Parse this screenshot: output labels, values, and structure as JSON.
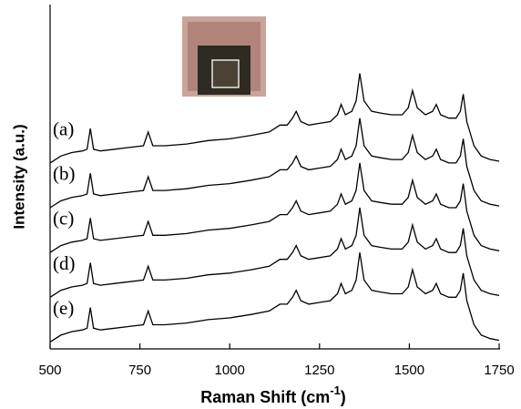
{
  "chart_data": {
    "type": "line",
    "xlabel": [
      "Raman Shift (cm",
      "-1",
      ")"
    ],
    "ylabel": "Intensity (a.u.)",
    "x": [
      500,
      530,
      560,
      590,
      603,
      612,
      621,
      640,
      680,
      720,
      760,
      773,
      786,
      820,
      880,
      940,
      1000,
      1060,
      1110,
      1140,
      1160,
      1175,
      1185,
      1198,
      1220,
      1250,
      1280,
      1300,
      1310,
      1322,
      1340,
      1352,
      1362,
      1374,
      1395,
      1420,
      1450,
      1480,
      1497,
      1509,
      1522,
      1545,
      1565,
      1575,
      1587,
      1610,
      1630,
      1642,
      1650,
      1660,
      1680,
      1700,
      1725,
      1750
    ],
    "series": [
      {
        "name": "(a)",
        "color": "#000000",
        "values": [
          54,
          56,
          57,
          57.5,
          58,
          64,
          58,
          57.5,
          58,
          58.5,
          59,
          63,
          59,
          59,
          59.5,
          60.5,
          61,
          62,
          63,
          65,
          65,
          67,
          69,
          66,
          65,
          65.5,
          66,
          68,
          71,
          68,
          69,
          72,
          80,
          72,
          69,
          68.5,
          68,
          68,
          70,
          75,
          70,
          68,
          69,
          71,
          68,
          67,
          67,
          69,
          74,
          66,
          59,
          56,
          55,
          54.5
        ]
      },
      {
        "name": "(b)",
        "color": "#000000",
        "values": [
          41,
          43,
          44,
          44.5,
          45,
          51,
          45,
          44.5,
          45,
          45.5,
          46,
          50,
          46,
          46,
          46.5,
          47.5,
          48,
          49,
          50,
          52,
          52,
          54,
          56,
          53,
          52,
          52.5,
          53,
          55,
          58,
          55,
          56,
          59,
          67,
          59,
          56,
          55.5,
          55,
          55,
          57,
          62,
          57,
          55,
          56,
          58,
          55,
          54,
          54,
          56,
          61,
          53,
          46,
          43,
          42,
          41.5
        ]
      },
      {
        "name": "(c)",
        "color": "#000000",
        "values": [
          28,
          30,
          31,
          31.5,
          32,
          38,
          32,
          31.5,
          32,
          32.5,
          33,
          37,
          33,
          33,
          33.5,
          34.5,
          35,
          36,
          37,
          39,
          39,
          41,
          43,
          40,
          39,
          39.5,
          40,
          42,
          45,
          42,
          43,
          46,
          54,
          46,
          43,
          42.5,
          42,
          42,
          44,
          49,
          44,
          42,
          43,
          45,
          42,
          41,
          41,
          43,
          48,
          40,
          33,
          30,
          29,
          28.5
        ]
      },
      {
        "name": "(d)",
        "color": "#000000",
        "values": [
          15,
          17,
          18,
          18.5,
          19,
          25,
          19,
          18.5,
          19,
          19.5,
          20,
          24,
          20,
          20,
          20.5,
          21.5,
          22,
          23,
          24,
          26,
          26,
          28,
          30,
          27,
          26,
          26.5,
          27,
          29,
          32,
          29,
          30,
          33,
          41,
          33,
          30,
          29.5,
          29,
          29,
          31,
          36,
          31,
          29,
          30,
          32,
          29,
          28,
          28,
          30,
          35,
          27,
          20,
          17,
          16,
          15.5
        ]
      },
      {
        "name": "(e)",
        "color": "#000000",
        "values": [
          2,
          4,
          5,
          5.5,
          6,
          12,
          6,
          5.5,
          6,
          6.5,
          7,
          11,
          7,
          7,
          7.5,
          8.5,
          9,
          10,
          11,
          13,
          13,
          15,
          17,
          14,
          13,
          13.5,
          14,
          16,
          19,
          16,
          17,
          20,
          28,
          20,
          17,
          16.5,
          16,
          16,
          18,
          23,
          18,
          16,
          17,
          19,
          16,
          15,
          15,
          17,
          22,
          14,
          7,
          4,
          3,
          2.5
        ]
      }
    ],
    "xlim": [
      500,
      1750
    ],
    "xticks": [
      500,
      750,
      1000,
      1250,
      1500,
      1750
    ],
    "ylim": [
      0,
      100
    ]
  }
}
